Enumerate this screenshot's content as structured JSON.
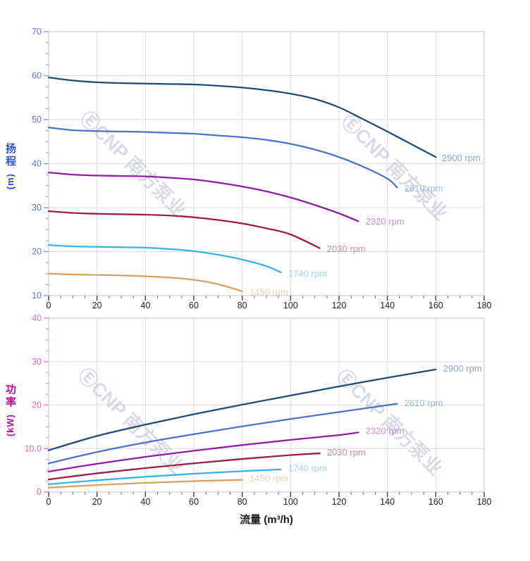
{
  "x_axis_title": "流量 (m³/h)",
  "watermark": "ⒺCNP 南方泵业",
  "palette": {
    "grid": "#dcdce2",
    "border": "#c6c6cd",
    "x_tick_major": "#3d3d3d",
    "x_tick_minor": "#707070",
    "x_tick_label": "#1f1f1f",
    "watermark_color": "#aab2c8"
  },
  "chart_data": [
    {
      "type": "line",
      "name": "head-vs-flow",
      "axis_title": "扬程",
      "axis_unit": "(m)",
      "title_color": "#2b50d8",
      "tick_label_color": "#5e74e0",
      "tick_mark_color": "#8093e8",
      "xlim": [
        0,
        180
      ],
      "ylim": [
        10,
        70
      ],
      "x_ticks": {
        "major": 20,
        "minor": 5
      },
      "y_ticks": {
        "major": 10,
        "minor": 2.5,
        "labels": [
          "10",
          "20",
          "30",
          "40",
          "50",
          "60",
          "70"
        ]
      },
      "x_tick_labels": [
        "0",
        "20",
        "40",
        "60",
        "80",
        "100",
        "120",
        "140",
        "160",
        "180"
      ],
      "series": [
        {
          "name": "2900 rpm",
          "color": "#1d4e79",
          "points": [
            [
              0,
              59.6
            ],
            [
              10,
              58.9
            ],
            [
              20,
              58.5
            ],
            [
              30,
              58.3
            ],
            [
              40,
              58.2
            ],
            [
              50,
              58.1
            ],
            [
              60,
              58.0
            ],
            [
              70,
              57.7
            ],
            [
              80,
              57.3
            ],
            [
              90,
              56.7
            ],
            [
              100,
              55.9
            ],
            [
              110,
              54.7
            ],
            [
              120,
              52.8
            ],
            [
              130,
              50.1
            ],
            [
              140,
              47.3
            ],
            [
              150,
              44.4
            ],
            [
              160,
              41.5
            ]
          ],
          "label_at": [
            162.5,
            41.2
          ]
        },
        {
          "name": "2610 rpm",
          "color": "#4a74c9",
          "points": [
            [
              0,
              48.2
            ],
            [
              10,
              47.6
            ],
            [
              20,
              47.4
            ],
            [
              30,
              47.3
            ],
            [
              40,
              47.2
            ],
            [
              50,
              47.0
            ],
            [
              60,
              46.8
            ],
            [
              70,
              46.4
            ],
            [
              80,
              46.0
            ],
            [
              90,
              45.4
            ],
            [
              100,
              44.5
            ],
            [
              110,
              43.2
            ],
            [
              120,
              41.5
            ],
            [
              130,
              39.3
            ],
            [
              140,
              36.6
            ],
            [
              144,
              34.6
            ]
          ],
          "label_at": [
            147,
            34.3
          ]
        },
        {
          "name": "2320 rpm",
          "color": "#8e1fa5",
          "points": [
            [
              0,
              38.0
            ],
            [
              10,
              37.5
            ],
            [
              20,
              37.3
            ],
            [
              30,
              37.2
            ],
            [
              40,
              37.1
            ],
            [
              50,
              36.8
            ],
            [
              60,
              36.4
            ],
            [
              70,
              35.7
            ],
            [
              80,
              34.8
            ],
            [
              90,
              33.7
            ],
            [
              100,
              32.3
            ],
            [
              110,
              30.6
            ],
            [
              120,
              28.7
            ],
            [
              128,
              26.9
            ]
          ],
          "label_at": [
            131,
            26.8
          ]
        },
        {
          "name": "2030 rpm",
          "color": "#9c1e44",
          "points": [
            [
              0,
              29.2
            ],
            [
              10,
              28.8
            ],
            [
              20,
              28.6
            ],
            [
              30,
              28.5
            ],
            [
              40,
              28.4
            ],
            [
              50,
              28.2
            ],
            [
              60,
              27.8
            ],
            [
              70,
              27.2
            ],
            [
              80,
              26.4
            ],
            [
              90,
              25.3
            ],
            [
              100,
              23.9
            ],
            [
              112,
              20.8
            ]
          ],
          "label_at": [
            115,
            20.6
          ]
        },
        {
          "name": "1740 rpm",
          "color": "#38b2e8",
          "points": [
            [
              0,
              21.5
            ],
            [
              10,
              21.2
            ],
            [
              20,
              21.1
            ],
            [
              30,
              21.0
            ],
            [
              40,
              20.9
            ],
            [
              50,
              20.6
            ],
            [
              60,
              20.1
            ],
            [
              70,
              19.3
            ],
            [
              80,
              18.2
            ],
            [
              90,
              16.7
            ],
            [
              96,
              15.3
            ]
          ],
          "label_at": [
            99,
            15.0
          ]
        },
        {
          "name": "1450 rpm",
          "color": "#d8a164",
          "points": [
            [
              0,
              15.0
            ],
            [
              10,
              14.8
            ],
            [
              20,
              14.7
            ],
            [
              30,
              14.6
            ],
            [
              40,
              14.4
            ],
            [
              50,
              14.1
            ],
            [
              60,
              13.6
            ],
            [
              70,
              12.6
            ],
            [
              80,
              11.0
            ]
          ],
          "label_at": [
            83,
            10.7
          ]
        }
      ]
    },
    {
      "type": "line",
      "name": "power-vs-flow",
      "axis_title": "功率",
      "axis_unit": "(kW)",
      "title_color": "#bf0a96",
      "tick_label_color": "#e668c0",
      "tick_mark_color": "#f279c8",
      "xlim": [
        0,
        180
      ],
      "ylim": [
        0,
        40
      ],
      "x_ticks": {
        "major": 20,
        "minor": 5
      },
      "y_ticks": {
        "major": 10,
        "minor": 2.5,
        "labels": [
          "0",
          "10.0",
          "20",
          "30",
          "40"
        ]
      },
      "x_tick_labels": [
        "0",
        "20",
        "40",
        "60",
        "80",
        "100",
        "120",
        "140",
        "160",
        "180"
      ],
      "series": [
        {
          "name": "2900 rpm",
          "color": "#1d4e79",
          "points": [
            [
              0,
              9.6
            ],
            [
              20,
              12.9
            ],
            [
              40,
              15.5
            ],
            [
              60,
              17.9
            ],
            [
              80,
              20.1
            ],
            [
              100,
              22.2
            ],
            [
              120,
              24.3
            ],
            [
              140,
              26.3
            ],
            [
              160,
              28.2
            ]
          ],
          "label_at": [
            163,
            28.3
          ]
        },
        {
          "name": "2610 rpm",
          "color": "#4a74c9",
          "points": [
            [
              0,
              6.6
            ],
            [
              20,
              9.2
            ],
            [
              40,
              11.4
            ],
            [
              60,
              13.3
            ],
            [
              80,
              15.1
            ],
            [
              100,
              16.8
            ],
            [
              120,
              18.4
            ],
            [
              144,
              20.3
            ]
          ],
          "label_at": [
            147,
            20.4
          ]
        },
        {
          "name": "2320 rpm",
          "color": "#8e1fa5",
          "points": [
            [
              0,
              4.7
            ],
            [
              20,
              6.5
            ],
            [
              40,
              8.1
            ],
            [
              60,
              9.5
            ],
            [
              80,
              10.8
            ],
            [
              100,
              12.0
            ],
            [
              120,
              13.1
            ],
            [
              128,
              13.7
            ]
          ],
          "label_at": [
            131,
            14.0
          ]
        },
        {
          "name": "2030 rpm",
          "color": "#9c1e44",
          "points": [
            [
              0,
              2.9
            ],
            [
              20,
              4.3
            ],
            [
              40,
              5.5
            ],
            [
              60,
              6.6
            ],
            [
              80,
              7.6
            ],
            [
              100,
              8.5
            ],
            [
              112,
              8.9
            ]
          ],
          "label_at": [
            115,
            9.1
          ]
        },
        {
          "name": "1740 rpm",
          "color": "#38b2e8",
          "points": [
            [
              0,
              1.8
            ],
            [
              20,
              2.7
            ],
            [
              40,
              3.5
            ],
            [
              60,
              4.2
            ],
            [
              80,
              4.8
            ],
            [
              96,
              5.2
            ]
          ],
          "label_at": [
            99,
            5.4
          ]
        },
        {
          "name": "1450 rpm",
          "color": "#d8a164",
          "points": [
            [
              0,
              1.0
            ],
            [
              20,
              1.6
            ],
            [
              40,
              2.1
            ],
            [
              60,
              2.5
            ],
            [
              80,
              2.8
            ]
          ],
          "label_at": [
            83,
            3.1
          ]
        }
      ]
    }
  ]
}
